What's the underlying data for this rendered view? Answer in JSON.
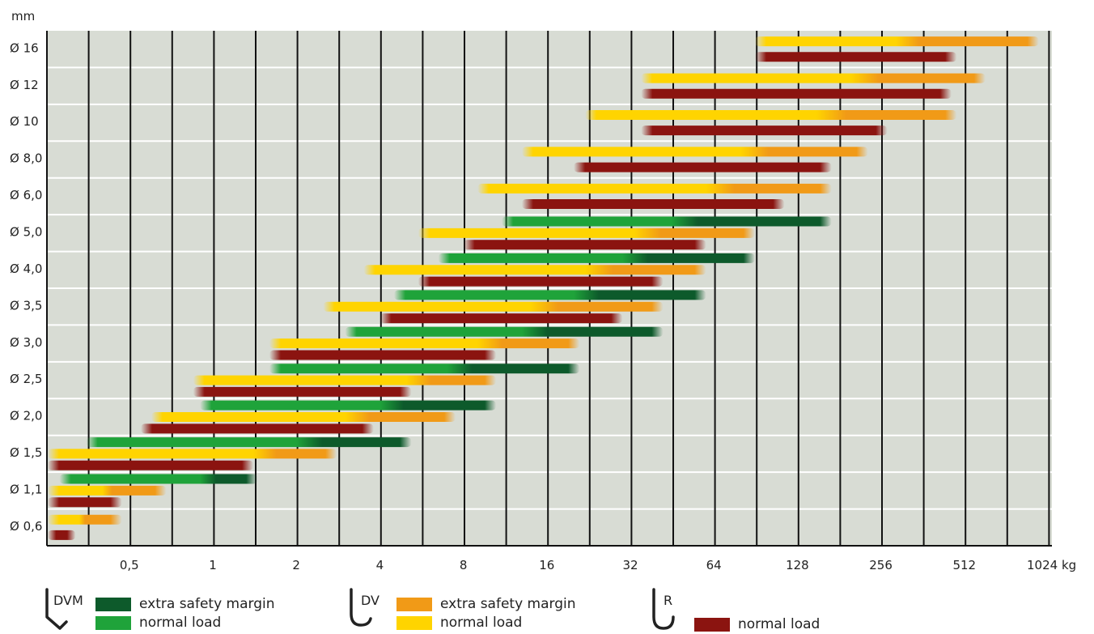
{
  "chart_data": {
    "type": "range-bar",
    "y_unit_label": "mm",
    "x_unit_label": "1024 kg",
    "x_scale": "log2",
    "x_ticks": [
      {
        "value": 0.5,
        "label": "0,5"
      },
      {
        "value": 1,
        "label": "1"
      },
      {
        "value": 2,
        "label": "2"
      },
      {
        "value": 4,
        "label": "4"
      },
      {
        "value": 8,
        "label": "8"
      },
      {
        "value": 16,
        "label": "16"
      },
      {
        "value": 32,
        "label": "32"
      },
      {
        "value": 64,
        "label": "64"
      },
      {
        "value": 128,
        "label": "128"
      },
      {
        "value": 256,
        "label": "256"
      },
      {
        "value": 512,
        "label": "512"
      },
      {
        "value": 1024,
        "label": "1024 kg"
      }
    ],
    "rows": [
      {
        "label": "Ø 16",
        "bars": [
          {
            "type": "DV",
            "start": 90,
            "normal_end": 290,
            "safety_end": 950
          },
          {
            "type": "R",
            "start": 90,
            "end": 480
          }
        ]
      },
      {
        "label": "Ø 12",
        "bars": [
          {
            "type": "DV",
            "start": 35,
            "normal_end": 200,
            "safety_end": 610
          },
          {
            "type": "R",
            "start": 35,
            "end": 460
          }
        ]
      },
      {
        "label": "Ø 10",
        "bars": [
          {
            "type": "DV",
            "start": 22,
            "normal_end": 150,
            "safety_end": 480
          },
          {
            "type": "R",
            "start": 35,
            "end": 270
          }
        ]
      },
      {
        "label": "Ø 8,0",
        "bars": [
          {
            "type": "DV",
            "start": 13,
            "normal_end": 80,
            "safety_end": 230
          },
          {
            "type": "R",
            "start": 20,
            "end": 170
          }
        ]
      },
      {
        "label": "Ø 6,0",
        "bars": [
          {
            "type": "DV",
            "start": 9,
            "normal_end": 60,
            "safety_end": 170
          },
          {
            "type": "R",
            "start": 13,
            "end": 115
          }
        ]
      },
      {
        "label": "Ø 5,0",
        "bars": [
          {
            "type": "DVM",
            "start": 11,
            "normal_end": 45,
            "safety_end": 170
          },
          {
            "type": "DV",
            "start": 5.5,
            "normal_end": 33,
            "safety_end": 90
          },
          {
            "type": "R",
            "start": 8,
            "end": 60
          }
        ]
      },
      {
        "label": "Ø 4,0",
        "bars": [
          {
            "type": "DVM",
            "start": 6.5,
            "normal_end": 30,
            "safety_end": 90
          },
          {
            "type": "DV",
            "start": 3.5,
            "normal_end": 22,
            "safety_end": 60
          },
          {
            "type": "R",
            "start": 5.5,
            "end": 42
          }
        ]
      },
      {
        "label": "Ø 3,5",
        "bars": [
          {
            "type": "DVM",
            "start": 4.5,
            "normal_end": 20,
            "safety_end": 60
          },
          {
            "type": "DV",
            "start": 2.5,
            "normal_end": 14,
            "safety_end": 42
          },
          {
            "type": "R",
            "start": 4,
            "end": 30
          }
        ]
      },
      {
        "label": "Ø 3,0",
        "bars": [
          {
            "type": "DVM",
            "start": 3,
            "normal_end": 13,
            "safety_end": 42
          },
          {
            "type": "DV",
            "start": 1.6,
            "normal_end": 9,
            "safety_end": 21
          },
          {
            "type": "R",
            "start": 1.6,
            "end": 10.5
          }
        ]
      },
      {
        "label": "Ø 2,5",
        "bars": [
          {
            "type": "DVM",
            "start": 1.6,
            "normal_end": 7,
            "safety_end": 21
          },
          {
            "type": "DV",
            "start": 0.85,
            "normal_end": 5,
            "safety_end": 10.5
          },
          {
            "type": "R",
            "start": 0.85,
            "end": 5.2
          }
        ]
      },
      {
        "label": "Ø 2,0",
        "bars": [
          {
            "type": "DVM",
            "start": 0.9,
            "normal_end": 4,
            "safety_end": 10.5
          },
          {
            "type": "DV",
            "start": 0.6,
            "normal_end": 3,
            "safety_end": 7.5
          },
          {
            "type": "R",
            "start": 0.55,
            "end": 3.8
          }
        ]
      },
      {
        "label": "Ø 1,5",
        "bars": [
          {
            "type": "DVM",
            "start": 0.35,
            "normal_end": 2,
            "safety_end": 5.2
          },
          {
            "type": "DV",
            "start": 0.25,
            "normal_end": 1.4,
            "safety_end": 2.8
          },
          {
            "type": "R",
            "start": 0.25,
            "end": 1.4
          }
        ]
      },
      {
        "label": "Ø 1,1",
        "bars": [
          {
            "type": "DVM",
            "start": 0.28,
            "normal_end": 0.9,
            "safety_end": 1.45
          },
          {
            "type": "DV",
            "start": 0.25,
            "normal_end": 0.4,
            "safety_end": 0.68
          },
          {
            "type": "R",
            "start": 0.25,
            "end": 0.47
          }
        ]
      },
      {
        "label": "Ø 0,6",
        "bars": [
          {
            "type": "DV",
            "start": 0.25,
            "normal_end": 0.33,
            "safety_end": 0.47
          },
          {
            "type": "R",
            "start": 0.25,
            "end": 0.32
          }
        ]
      }
    ]
  },
  "legend": {
    "groups": [
      {
        "code": "DVM",
        "items": [
          {
            "label": "extra safety margin",
            "color": "#0d5a2b"
          },
          {
            "label": "normal load",
            "color": "#1fa33a"
          }
        ]
      },
      {
        "code": "DV",
        "items": [
          {
            "label": "extra safety margin",
            "color": "#f19a17"
          },
          {
            "label": "normal load",
            "color": "#ffd400"
          }
        ]
      },
      {
        "code": "R",
        "items": [
          {
            "label": "normal load",
            "color": "#8b1410"
          }
        ]
      }
    ]
  },
  "colors": {
    "plot_background": "#d8dcd4",
    "grid_vertical": "#111111",
    "grid_horizontal": "#ffffff",
    "dvm_normal": "#1fa33a",
    "dvm_safety": "#0d5a2b",
    "dv_normal": "#ffd400",
    "dv_safety": "#f19a17",
    "r_normal": "#8b1410"
  }
}
